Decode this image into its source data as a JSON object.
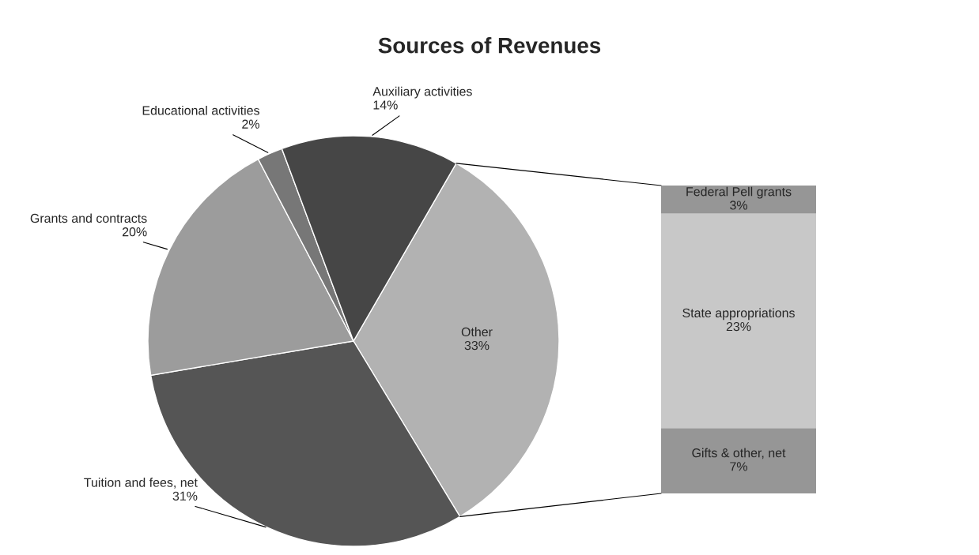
{
  "chart_data": [
    {
      "type": "pie",
      "title": "Sources of Revenues",
      "categories": [
        "Other",
        "Tuition and fees, net",
        "Grants and contracts",
        "Educational activities",
        "Auxiliary activities"
      ],
      "values": [
        33,
        31,
        20,
        2,
        14
      ],
      "value_labels": [
        "33%",
        "31%",
        "20%",
        "2%",
        "14%"
      ],
      "colors": [
        "#b2b2b2",
        "#555555",
        "#9c9c9c",
        "#777777",
        "#464646"
      ]
    },
    {
      "type": "bar",
      "stacked": true,
      "categories": [
        null
      ],
      "series": [
        {
          "name": "Gifts & other, net",
          "color": "#969696",
          "values": [
            7
          ],
          "value_labels": [
            "7%"
          ]
        },
        {
          "name": "State appropriations",
          "color": "#c8c8c8",
          "values": [
            23
          ],
          "value_labels": [
            "23%"
          ]
        },
        {
          "name": "Federal Pell grants",
          "color": "#969696",
          "values": [
            3
          ],
          "value_labels": [
            "3%"
          ]
        }
      ]
    }
  ]
}
